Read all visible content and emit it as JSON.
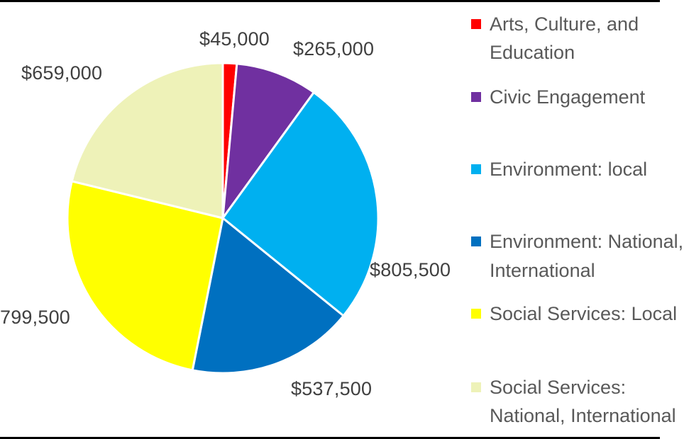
{
  "chart_data": {
    "type": "pie",
    "title": "",
    "categories": [
      "Arts, Culture, and Education",
      "Civic Engagement",
      "Environment: local",
      "Environment: National, International",
      "Social Services: Local",
      "Social Services: National, International"
    ],
    "values": [
      45000,
      265000,
      805500,
      537500,
      799500,
      659000
    ],
    "data_labels": [
      "$45,000",
      "$265,000",
      "$805,500",
      "$537,500",
      "$799,500",
      "$659,000"
    ],
    "colors": [
      "#ff0000",
      "#7030a0",
      "#00b0f0",
      "#0070c0",
      "#ffff00",
      "#eef2b8"
    ],
    "start_angle_deg": 0,
    "direction": "clockwise",
    "legend_position": "right"
  },
  "labels": {
    "arts": "$45,000",
    "civic": "$265,000",
    "env_local": "$805,500",
    "env_national": "$537,500",
    "social_local": "799,500",
    "social_national": "$659,000"
  },
  "legend": {
    "items": [
      {
        "lines": [
          "Arts, Culture, and",
          "Education"
        ],
        "color": "#ff0000"
      },
      {
        "lines": [
          "Civic Engagement"
        ],
        "color": "#7030a0"
      },
      {
        "lines": [
          "Environment: local"
        ],
        "color": "#00b0f0"
      },
      {
        "lines": [
          "Environment: National,",
          "International"
        ],
        "color": "#0070c0"
      },
      {
        "lines": [
          "Social Services: Local"
        ],
        "color": "#ffff00"
      },
      {
        "lines": [
          "Social Services:",
          "National, International"
        ],
        "color": "#eef2b8"
      }
    ]
  }
}
